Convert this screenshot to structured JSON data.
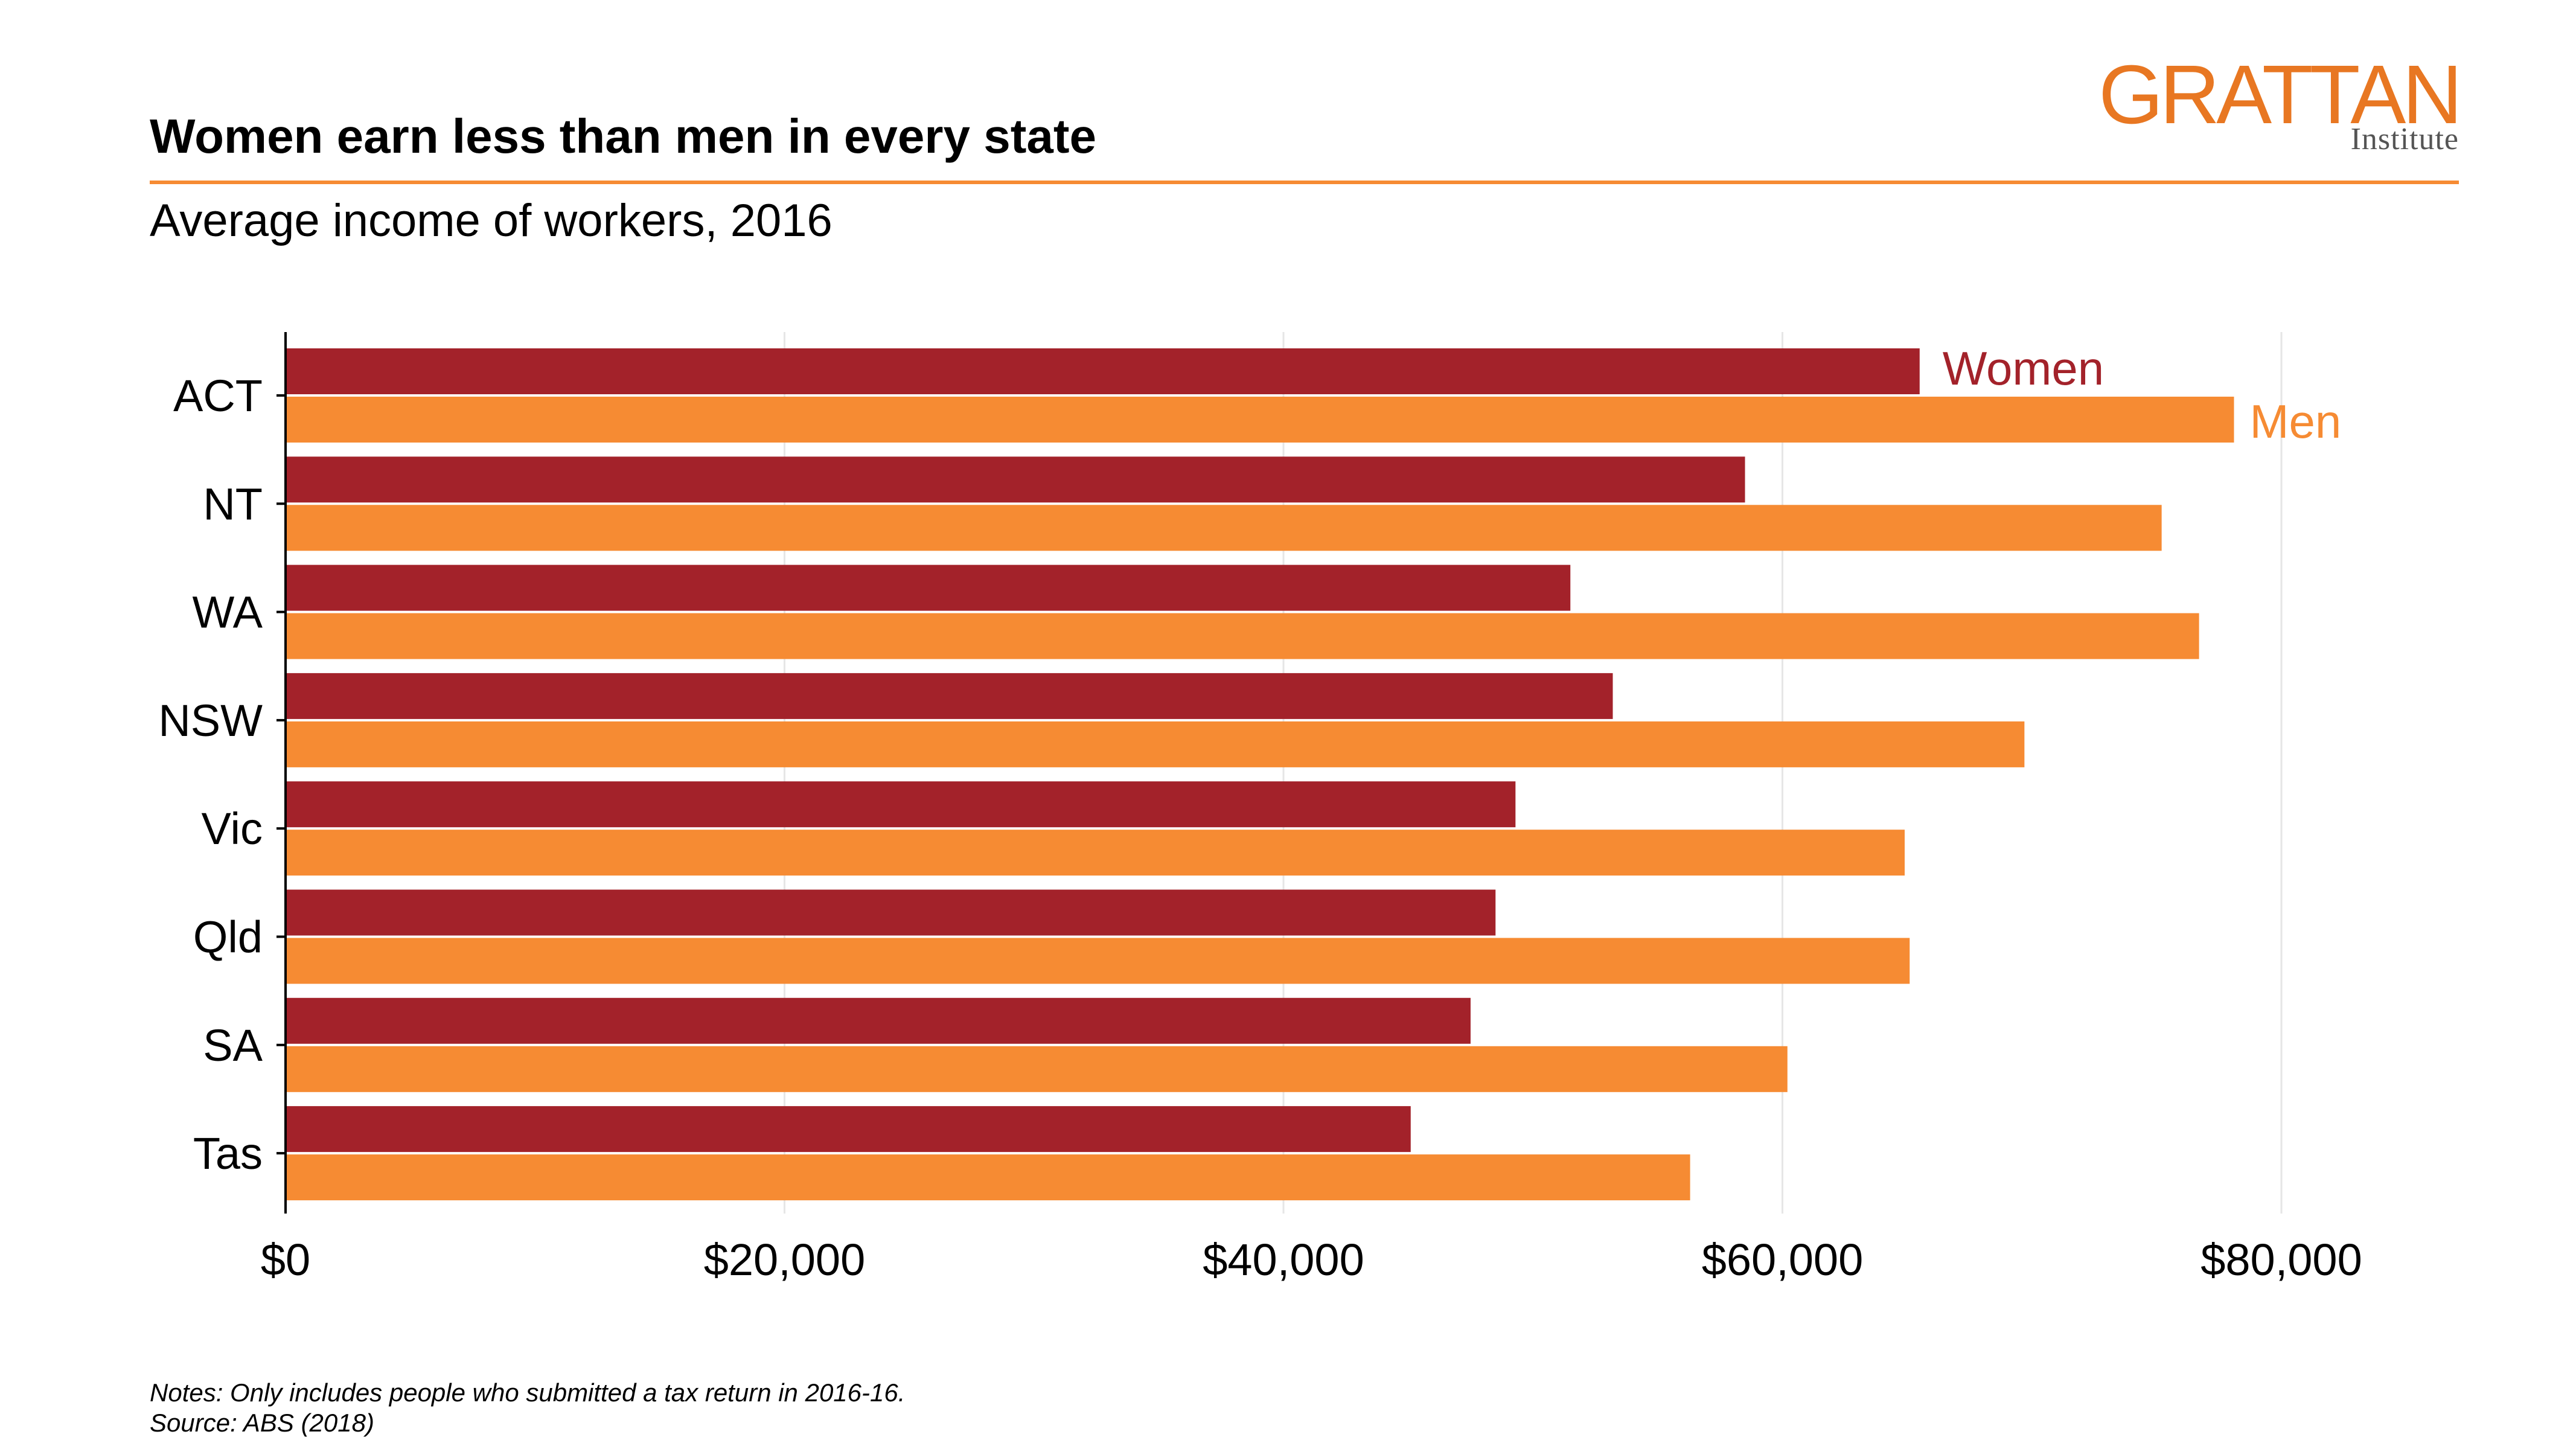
{
  "header": {
    "title": "Women earn less than men in every state",
    "subtitle": "Average income of workers, 2016"
  },
  "logo": {
    "name": "GRATTAN",
    "sub": "Institute"
  },
  "footer": {
    "notes": "Notes: Only includes people who submitted a tax return in 2016-16.",
    "source": "Source: ABS (2018)"
  },
  "colors": {
    "women": "#A3222A",
    "men": "#F68B33",
    "accent": "#F68B33",
    "grid": "#E6E6E6"
  },
  "chart_data": {
    "type": "bar",
    "orientation": "horizontal",
    "categories": [
      "ACT",
      "NT",
      "WA",
      "NSW",
      "Vic",
      "Qld",
      "SA",
      "Tas"
    ],
    "series": [
      {
        "name": "Women",
        "values": [
          65500,
          58500,
          51500,
          53200,
          49300,
          48500,
          47500,
          45100
        ]
      },
      {
        "name": "Men",
        "values": [
          78100,
          75200,
          76700,
          69700,
          64900,
          65100,
          60200,
          56300
        ]
      }
    ],
    "x_ticks": [
      0,
      20000,
      40000,
      60000,
      80000
    ],
    "x_tick_labels": [
      "$0",
      "$20,000",
      "$40,000",
      "$60,000",
      "$80,000"
    ],
    "xlim": [
      0,
      86000
    ],
    "xlabel": "",
    "ylabel": "",
    "grid": "vertical",
    "legend": "inline labels at end of ACT bars"
  }
}
